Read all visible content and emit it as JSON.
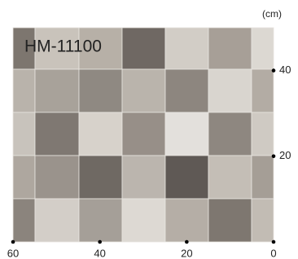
{
  "product_code": "HM-11100",
  "unit": "(cm)",
  "x_axis": {
    "xlim": [
      60,
      0
    ],
    "xticks": [
      60,
      40,
      20,
      0
    ]
  },
  "y_axis": {
    "ylim": [
      0,
      50
    ],
    "yticks": [
      40,
      20
    ]
  }
}
